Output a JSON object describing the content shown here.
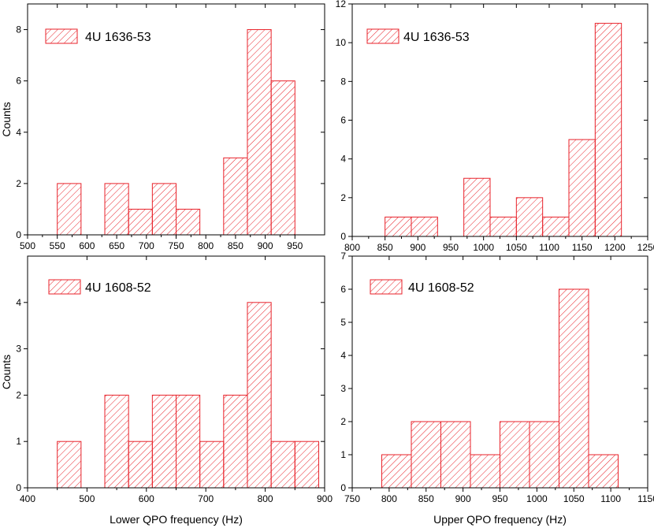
{
  "colors": {
    "bar": "#e8222a",
    "axis": "#000000"
  },
  "chart_data": [
    {
      "type": "bar",
      "legend": "4U 1636-53",
      "xlabel": "",
      "ylabel": "Counts",
      "xlim": [
        500,
        1000
      ],
      "ylim": [
        0,
        9
      ],
      "xticks": [
        500,
        550,
        600,
        650,
        700,
        750,
        800,
        850,
        900,
        950
      ],
      "yticks": [
        0,
        2,
        4,
        6,
        8
      ],
      "bins": [
        {
          "x0": 550,
          "x1": 590,
          "value": 2
        },
        {
          "x0": 630,
          "x1": 670,
          "value": 2
        },
        {
          "x0": 670,
          "x1": 710,
          "value": 1
        },
        {
          "x0": 710,
          "x1": 750,
          "value": 2
        },
        {
          "x0": 750,
          "x1": 790,
          "value": 1
        },
        {
          "x0": 830,
          "x1": 870,
          "value": 3
        },
        {
          "x0": 870,
          "x1": 910,
          "value": 8
        },
        {
          "x0": 910,
          "x1": 950,
          "value": 6
        }
      ]
    },
    {
      "type": "bar",
      "legend": "4U 1636-53",
      "xlabel": "",
      "ylabel": "",
      "xlim": [
        800,
        1250
      ],
      "ylim": [
        0,
        12
      ],
      "xticks": [
        800,
        850,
        900,
        950,
        1000,
        1050,
        1100,
        1150,
        1200,
        1250
      ],
      "yticks": [
        0,
        2,
        4,
        6,
        8,
        10,
        12
      ],
      "bins": [
        {
          "x0": 850,
          "x1": 890,
          "value": 1
        },
        {
          "x0": 890,
          "x1": 930,
          "value": 1
        },
        {
          "x0": 970,
          "x1": 1010,
          "value": 3
        },
        {
          "x0": 1010,
          "x1": 1050,
          "value": 1
        },
        {
          "x0": 1050,
          "x1": 1090,
          "value": 2
        },
        {
          "x0": 1090,
          "x1": 1130,
          "value": 1
        },
        {
          "x0": 1130,
          "x1": 1170,
          "value": 5
        },
        {
          "x0": 1170,
          "x1": 1210,
          "value": 11
        }
      ]
    },
    {
      "type": "bar",
      "legend": "4U 1608-52",
      "xlabel": "Lower QPO frequency (Hz)",
      "ylabel": "Counts",
      "xlim": [
        400,
        900
      ],
      "ylim": [
        0,
        5
      ],
      "xticks": [
        400,
        500,
        600,
        700,
        800,
        900
      ],
      "yticks": [
        0,
        1,
        2,
        3,
        4
      ],
      "bins": [
        {
          "x0": 450,
          "x1": 490,
          "value": 1
        },
        {
          "x0": 530,
          "x1": 570,
          "value": 2
        },
        {
          "x0": 570,
          "x1": 610,
          "value": 1
        },
        {
          "x0": 610,
          "x1": 650,
          "value": 2
        },
        {
          "x0": 650,
          "x1": 690,
          "value": 2
        },
        {
          "x0": 690,
          "x1": 730,
          "value": 1
        },
        {
          "x0": 730,
          "x1": 770,
          "value": 2
        },
        {
          "x0": 770,
          "x1": 810,
          "value": 4
        },
        {
          "x0": 810,
          "x1": 850,
          "value": 1
        },
        {
          "x0": 850,
          "x1": 890,
          "value": 1
        }
      ]
    },
    {
      "type": "bar",
      "legend": "4U 1608-52",
      "xlabel": "Upper QPO frequency (Hz)",
      "ylabel": "",
      "xlim": [
        750,
        1150
      ],
      "ylim": [
        0,
        7
      ],
      "xticks": [
        750,
        800,
        850,
        900,
        950,
        1000,
        1050,
        1100,
        1150
      ],
      "yticks": [
        0,
        1,
        2,
        3,
        4,
        5,
        6,
        7
      ],
      "bins": [
        {
          "x0": 790,
          "x1": 830,
          "value": 1
        },
        {
          "x0": 830,
          "x1": 870,
          "value": 2
        },
        {
          "x0": 870,
          "x1": 910,
          "value": 2
        },
        {
          "x0": 910,
          "x1": 950,
          "value": 1
        },
        {
          "x0": 950,
          "x1": 990,
          "value": 2
        },
        {
          "x0": 990,
          "x1": 1030,
          "value": 2
        },
        {
          "x0": 1030,
          "x1": 1070,
          "value": 6
        },
        {
          "x0": 1070,
          "x1": 1110,
          "value": 1
        }
      ]
    }
  ]
}
